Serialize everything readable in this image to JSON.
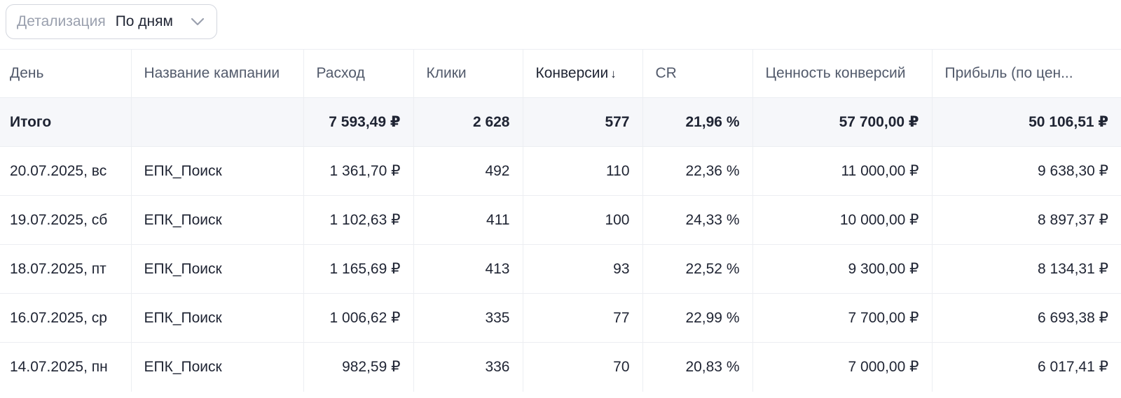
{
  "filter": {
    "label": "Детализация",
    "value": "По дням"
  },
  "table": {
    "headers": {
      "day": "День",
      "campaign": "Название кампании",
      "cost": "Расход",
      "clicks": "Клики",
      "conversions": "Конверсии",
      "conversions_sort": "↓",
      "cr": "CR",
      "value": "Ценность конверсий",
      "profit": "Прибыль (по цен..."
    },
    "total": {
      "label": "Итого",
      "campaign": "",
      "cost": "7 593,49 ₽",
      "clicks": "2 628",
      "conversions": "577",
      "cr": "21,96 %",
      "value": "57 700,00 ₽",
      "profit": "50 106,51 ₽"
    },
    "rows": [
      {
        "day": "20.07.2025, вс",
        "campaign": "ЕПК_Поиск",
        "cost": "1 361,70 ₽",
        "clicks": "492",
        "conversions": "110",
        "cr": "22,36 %",
        "value": "11 000,00 ₽",
        "profit": "9 638,30 ₽"
      },
      {
        "day": "19.07.2025, сб",
        "campaign": "ЕПК_Поиск",
        "cost": "1 102,63 ₽",
        "clicks": "411",
        "conversions": "100",
        "cr": "24,33 %",
        "value": "10 000,00 ₽",
        "profit": "8 897,37 ₽"
      },
      {
        "day": "18.07.2025, пт",
        "campaign": "ЕПК_Поиск",
        "cost": "1 165,69 ₽",
        "clicks": "413",
        "conversions": "93",
        "cr": "22,52 %",
        "value": "9 300,00 ₽",
        "profit": "8 134,31 ₽"
      },
      {
        "day": "16.07.2025, ср",
        "campaign": "ЕПК_Поиск",
        "cost": "1 006,62 ₽",
        "clicks": "335",
        "conversions": "77",
        "cr": "22,99 %",
        "value": "7 700,00 ₽",
        "profit": "6 693,38 ₽"
      },
      {
        "day": "14.07.2025, пн",
        "campaign": "ЕПК_Поиск",
        "cost": "982,59 ₽",
        "clicks": "336",
        "conversions": "70",
        "cr": "20,83 %",
        "value": "7 000,00 ₽",
        "profit": "6 017,41 ₽"
      }
    ]
  }
}
